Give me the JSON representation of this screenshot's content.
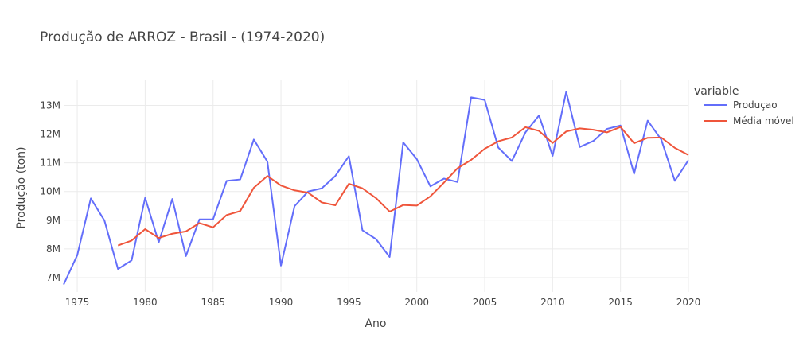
{
  "chart_data": {
    "type": "line",
    "title": "Produção de ARROZ - Brasil - (1974-2020)",
    "xlabel": "Ano",
    "ylabel": "Produção (ton)",
    "xlim": [
      1974,
      2020
    ],
    "ylim": [
      6500000,
      13900000
    ],
    "grid": true,
    "legend_title": "variable",
    "legend_position": "right",
    "x_ticks": [
      1975,
      1980,
      1985,
      1990,
      1995,
      2000,
      2005,
      2010,
      2015,
      2020
    ],
    "x_tick_labels": [
      "1975",
      "1980",
      "1985",
      "1990",
      "1995",
      "2000",
      "2005",
      "2010",
      "2015",
      "2020"
    ],
    "y_ticks": [
      7000000,
      8000000,
      9000000,
      10000000,
      11000000,
      12000000,
      13000000
    ],
    "y_tick_labels": [
      "7M",
      "8M",
      "9M",
      "10M",
      "11M",
      "12M",
      "13M"
    ],
    "x": [
      1974,
      1975,
      1976,
      1977,
      1978,
      1979,
      1980,
      1981,
      1982,
      1983,
      1984,
      1985,
      1986,
      1987,
      1988,
      1989,
      1990,
      1991,
      1992,
      1993,
      1994,
      1995,
      1996,
      1997,
      1998,
      1999,
      2000,
      2001,
      2002,
      2003,
      2004,
      2005,
      2006,
      2007,
      2008,
      2009,
      2010,
      2011,
      2012,
      2013,
      2014,
      2015,
      2016,
      2017,
      2018,
      2019,
      2020
    ],
    "series": [
      {
        "name": "Produçao",
        "color": "#636efa",
        "values": [
          6760000,
          7780000,
          9760000,
          8990000,
          7300000,
          7600000,
          9780000,
          8230000,
          9740000,
          7750000,
          9030000,
          9030000,
          10370000,
          10420000,
          11810000,
          11040000,
          7420000,
          9490000,
          10000000,
          10110000,
          10540000,
          11230000,
          8650000,
          8340000,
          7720000,
          11710000,
          11130000,
          10180000,
          10450000,
          10330000,
          13280000,
          13190000,
          11530000,
          11060000,
          12060000,
          12650000,
          11240000,
          13470000,
          11550000,
          11760000,
          12180000,
          12300000,
          10620000,
          12470000,
          11810000,
          10370000,
          11090000
        ]
      },
      {
        "name": "Média móvel",
        "color": "#ef553b",
        "values": [
          null,
          null,
          null,
          null,
          8120000,
          8290000,
          8690000,
          8380000,
          8530000,
          8610000,
          8900000,
          8750000,
          9180000,
          9320000,
          10130000,
          10540000,
          10210000,
          10040000,
          9960000,
          9620000,
          9520000,
          10270000,
          10110000,
          9770000,
          9300000,
          9530000,
          9510000,
          9830000,
          10310000,
          10810000,
          11100000,
          11490000,
          11750000,
          11880000,
          12240000,
          12110000,
          11690000,
          12090000,
          12200000,
          12150000,
          12060000,
          12250000,
          11680000,
          11870000,
          11880000,
          11520000,
          11270000
        ]
      }
    ]
  }
}
